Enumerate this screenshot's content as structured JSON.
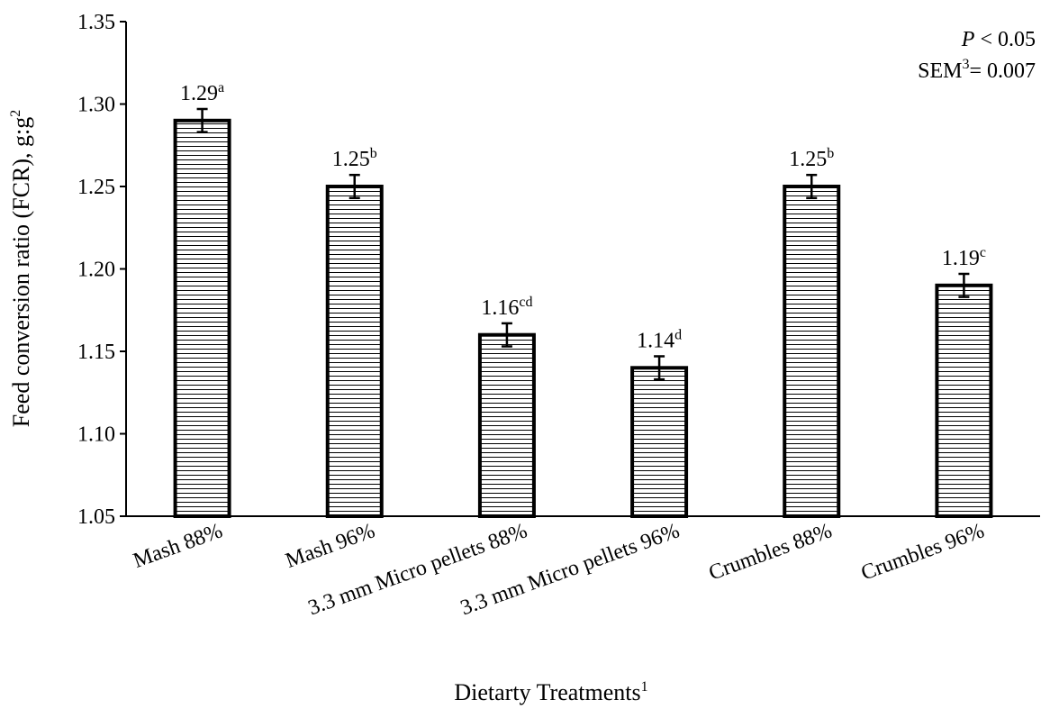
{
  "chart_data": {
    "type": "bar",
    "title": "",
    "xlabel": "Dietarty Treatments",
    "xlabel_sup": "1",
    "ylabel": "Feed conversion ratio (FCR), g:g",
    "ylabel_sup": "2",
    "ylim": [
      1.05,
      1.35
    ],
    "yticks": [
      "1.05",
      "1.10",
      "1.15",
      "1.20",
      "1.25",
      "1.30",
      "1.35"
    ],
    "ytick_values": [
      1.05,
      1.1,
      1.15,
      1.2,
      1.25,
      1.3,
      1.35
    ],
    "grid": false,
    "bar_fill": "horizontal-lines",
    "categories": [
      "Mash 88%",
      "Mash 96%",
      "3.3 mm Micro pellets 88%",
      "3.3 mm Micro pellets 96%",
      "Crumbles 88%",
      "Crumbles 96%"
    ],
    "values": [
      1.29,
      1.25,
      1.16,
      1.14,
      1.25,
      1.19
    ],
    "error": [
      0.007,
      0.007,
      0.007,
      0.007,
      0.007,
      0.007
    ],
    "value_labels": [
      "1.29",
      "1.25",
      "1.16",
      "1.14",
      "1.25",
      "1.19"
    ],
    "letters": [
      "a",
      "b",
      "cd",
      "d",
      "b",
      "c"
    ],
    "annotations": {
      "p_italic": "P",
      "p_rest": " < 0.05",
      "sem_prefix": "SEM",
      "sem_sup": "3",
      "sem_rest": "= 0.007"
    }
  }
}
